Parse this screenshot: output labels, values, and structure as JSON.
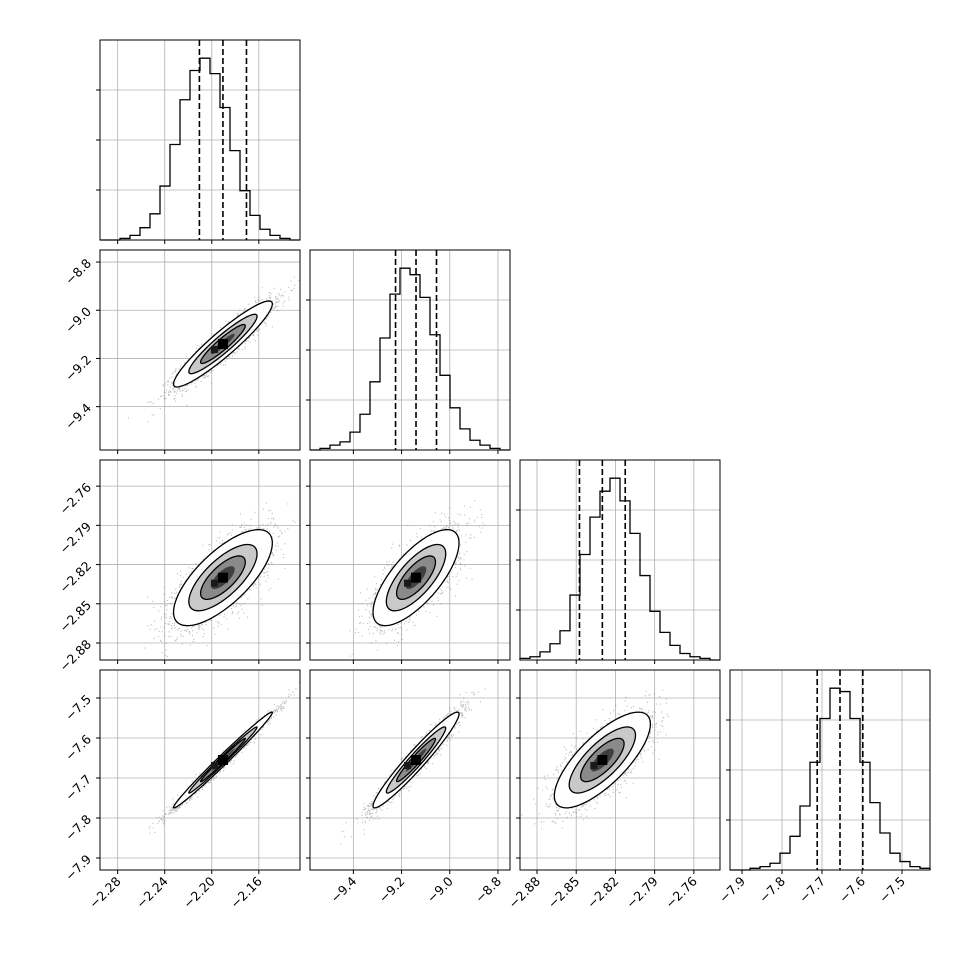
{
  "chart_data": {
    "type": "corner",
    "title": "",
    "grid": true,
    "parameters": [
      {
        "range": [
          -2.295,
          -2.125
        ],
        "ticks": [
          -2.28,
          -2.24,
          -2.2,
          -2.16
        ],
        "tick_labels": [
          "−2.28",
          "−2.24",
          "−2.20",
          "−2.16"
        ],
        "quantiles": [
          -2.2105,
          -2.1905,
          -2.1705
        ],
        "mean": -2.1905,
        "sd": 0.02,
        "hist_counts": [
          0,
          0,
          1,
          3,
          8,
          17,
          35,
          62,
          91,
          110,
          118,
          108,
          86,
          58,
          32,
          16,
          7,
          3,
          1,
          0
        ]
      },
      {
        "range": [
          -9.58,
          -8.75
        ],
        "ticks": [
          -9.4,
          -9.2,
          -9.0,
          -8.8
        ],
        "tick_labels": [
          "−9.4",
          "−9.2",
          "−9.0",
          "−8.8"
        ],
        "quantiles": [
          -9.225,
          -9.14,
          -9.055
        ],
        "mean": -9.14,
        "sd": 0.085,
        "hist_counts": [
          0,
          1,
          3,
          5,
          11,
          22,
          42,
          69,
          96,
          112,
          108,
          94,
          71,
          46,
          26,
          13,
          6,
          3,
          1,
          0
        ]
      },
      {
        "range": [
          -2.893,
          -2.74
        ],
        "ticks": [
          -2.88,
          -2.85,
          -2.82,
          -2.79,
          -2.76
        ],
        "tick_labels": [
          "−2.88",
          "−2.85",
          "−2.82",
          "−2.79",
          "−2.76"
        ],
        "quantiles": [
          -2.8475,
          -2.83,
          -2.8125
        ],
        "mean": -2.83,
        "sd": 0.0175,
        "hist_counts": [
          1,
          2,
          5,
          10,
          18,
          40,
          65,
          88,
          104,
          112,
          98,
          78,
          52,
          30,
          17,
          9,
          4,
          2,
          1,
          0
        ]
      },
      {
        "range": [
          -7.93,
          -7.43
        ],
        "ticks": [
          -7.9,
          -7.8,
          -7.7,
          -7.6,
          -7.5
        ],
        "tick_labels": [
          "−7.9",
          "−7.8",
          "−7.7",
          "−7.6",
          "−7.5"
        ],
        "quantiles": [
          -7.712,
          -7.655,
          -7.598
        ],
        "mean": -7.655,
        "sd": 0.057,
        "hist_counts": [
          0,
          0,
          1,
          2,
          4,
          10,
          20,
          38,
          64,
          90,
          108,
          106,
          90,
          64,
          40,
          22,
          10,
          5,
          2,
          1
        ]
      }
    ],
    "correlations": {
      "1-0": 0.93,
      "2-0": 0.72,
      "2-1": 0.72,
      "3-0": 0.99,
      "3-1": 0.96,
      "3-2": 0.75
    }
  }
}
